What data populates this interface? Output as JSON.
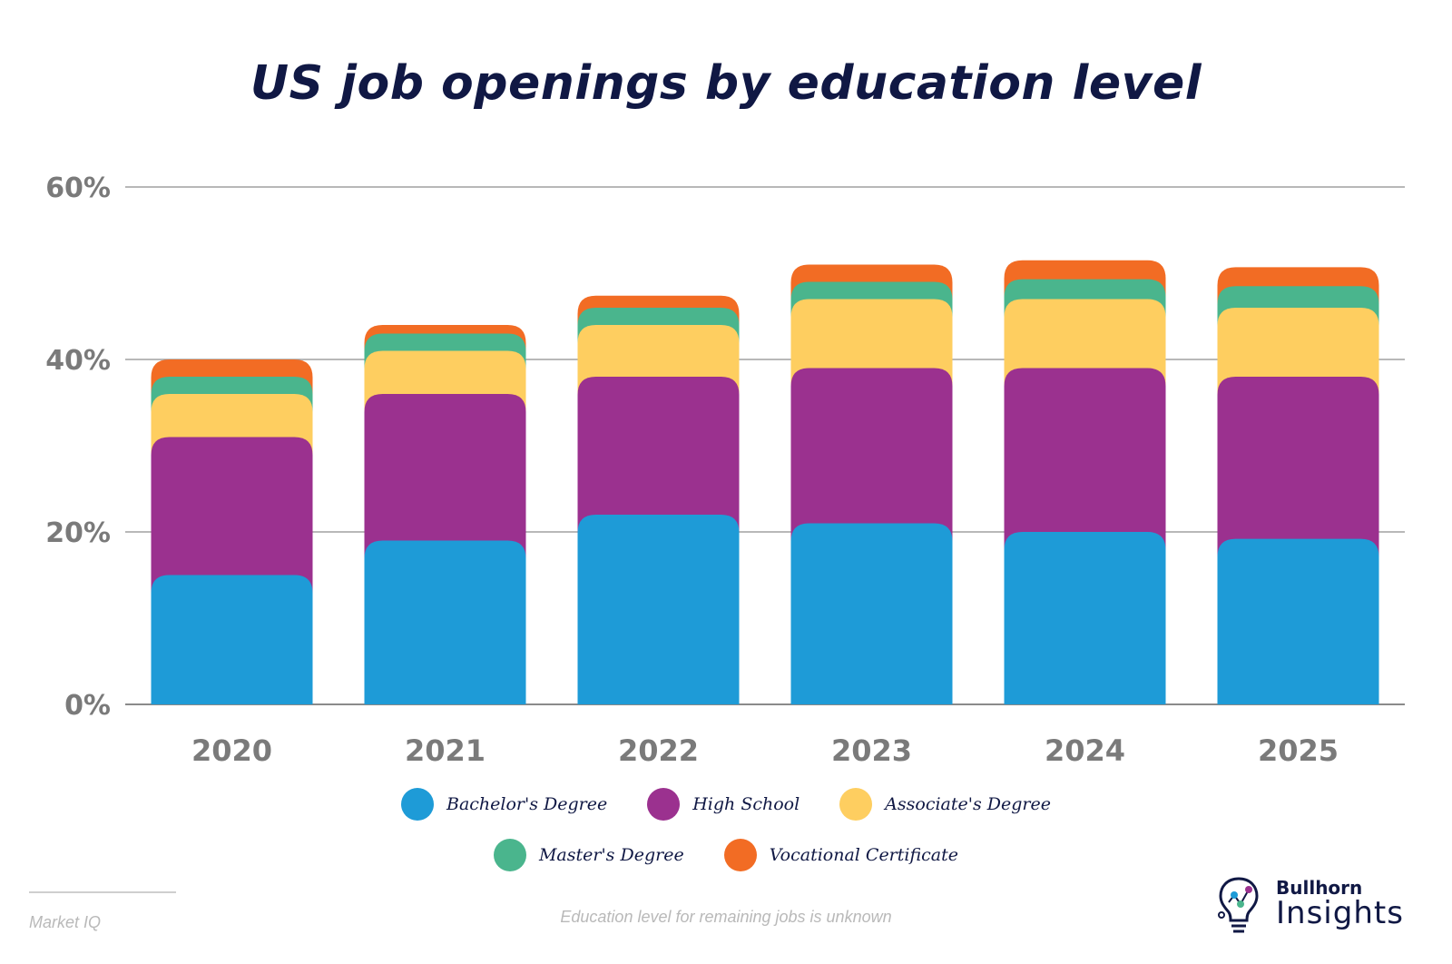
{
  "chart_data": {
    "type": "bar",
    "stacked": true,
    "title": "US job openings by education level",
    "categories": [
      "2020",
      "2021",
      "2022",
      "2023",
      "2024",
      "2025"
    ],
    "y_ticks": [
      "0%",
      "20%",
      "40%",
      "60%"
    ],
    "ylim": [
      0,
      60
    ],
    "grid": true,
    "legend_position": "bottom",
    "series": [
      {
        "name": "Bachelor's Degree",
        "color": "#1e9bd7",
        "values": [
          15,
          19,
          22,
          21,
          20,
          19.2
        ]
      },
      {
        "name": "High School",
        "color": "#9b318f",
        "values": [
          16,
          17,
          16,
          18,
          19,
          18.8
        ]
      },
      {
        "name": "Associate's Degree",
        "color": "#fece60",
        "values": [
          5,
          5,
          6,
          8,
          8,
          8
        ]
      },
      {
        "name": "Master's Degree",
        "color": "#4ab58d",
        "values": [
          2,
          2,
          2,
          2,
          2.3,
          2.5
        ]
      },
      {
        "name": "Vocational Certificate",
        "color": "#f26c24",
        "values": [
          2,
          1,
          1.4,
          2,
          2.2,
          2.2
        ]
      }
    ]
  },
  "footnote": "Education level for remaining jobs is unknown",
  "source": "Market IQ",
  "logo": {
    "name": "Bullhorn",
    "sub": "Insights"
  }
}
